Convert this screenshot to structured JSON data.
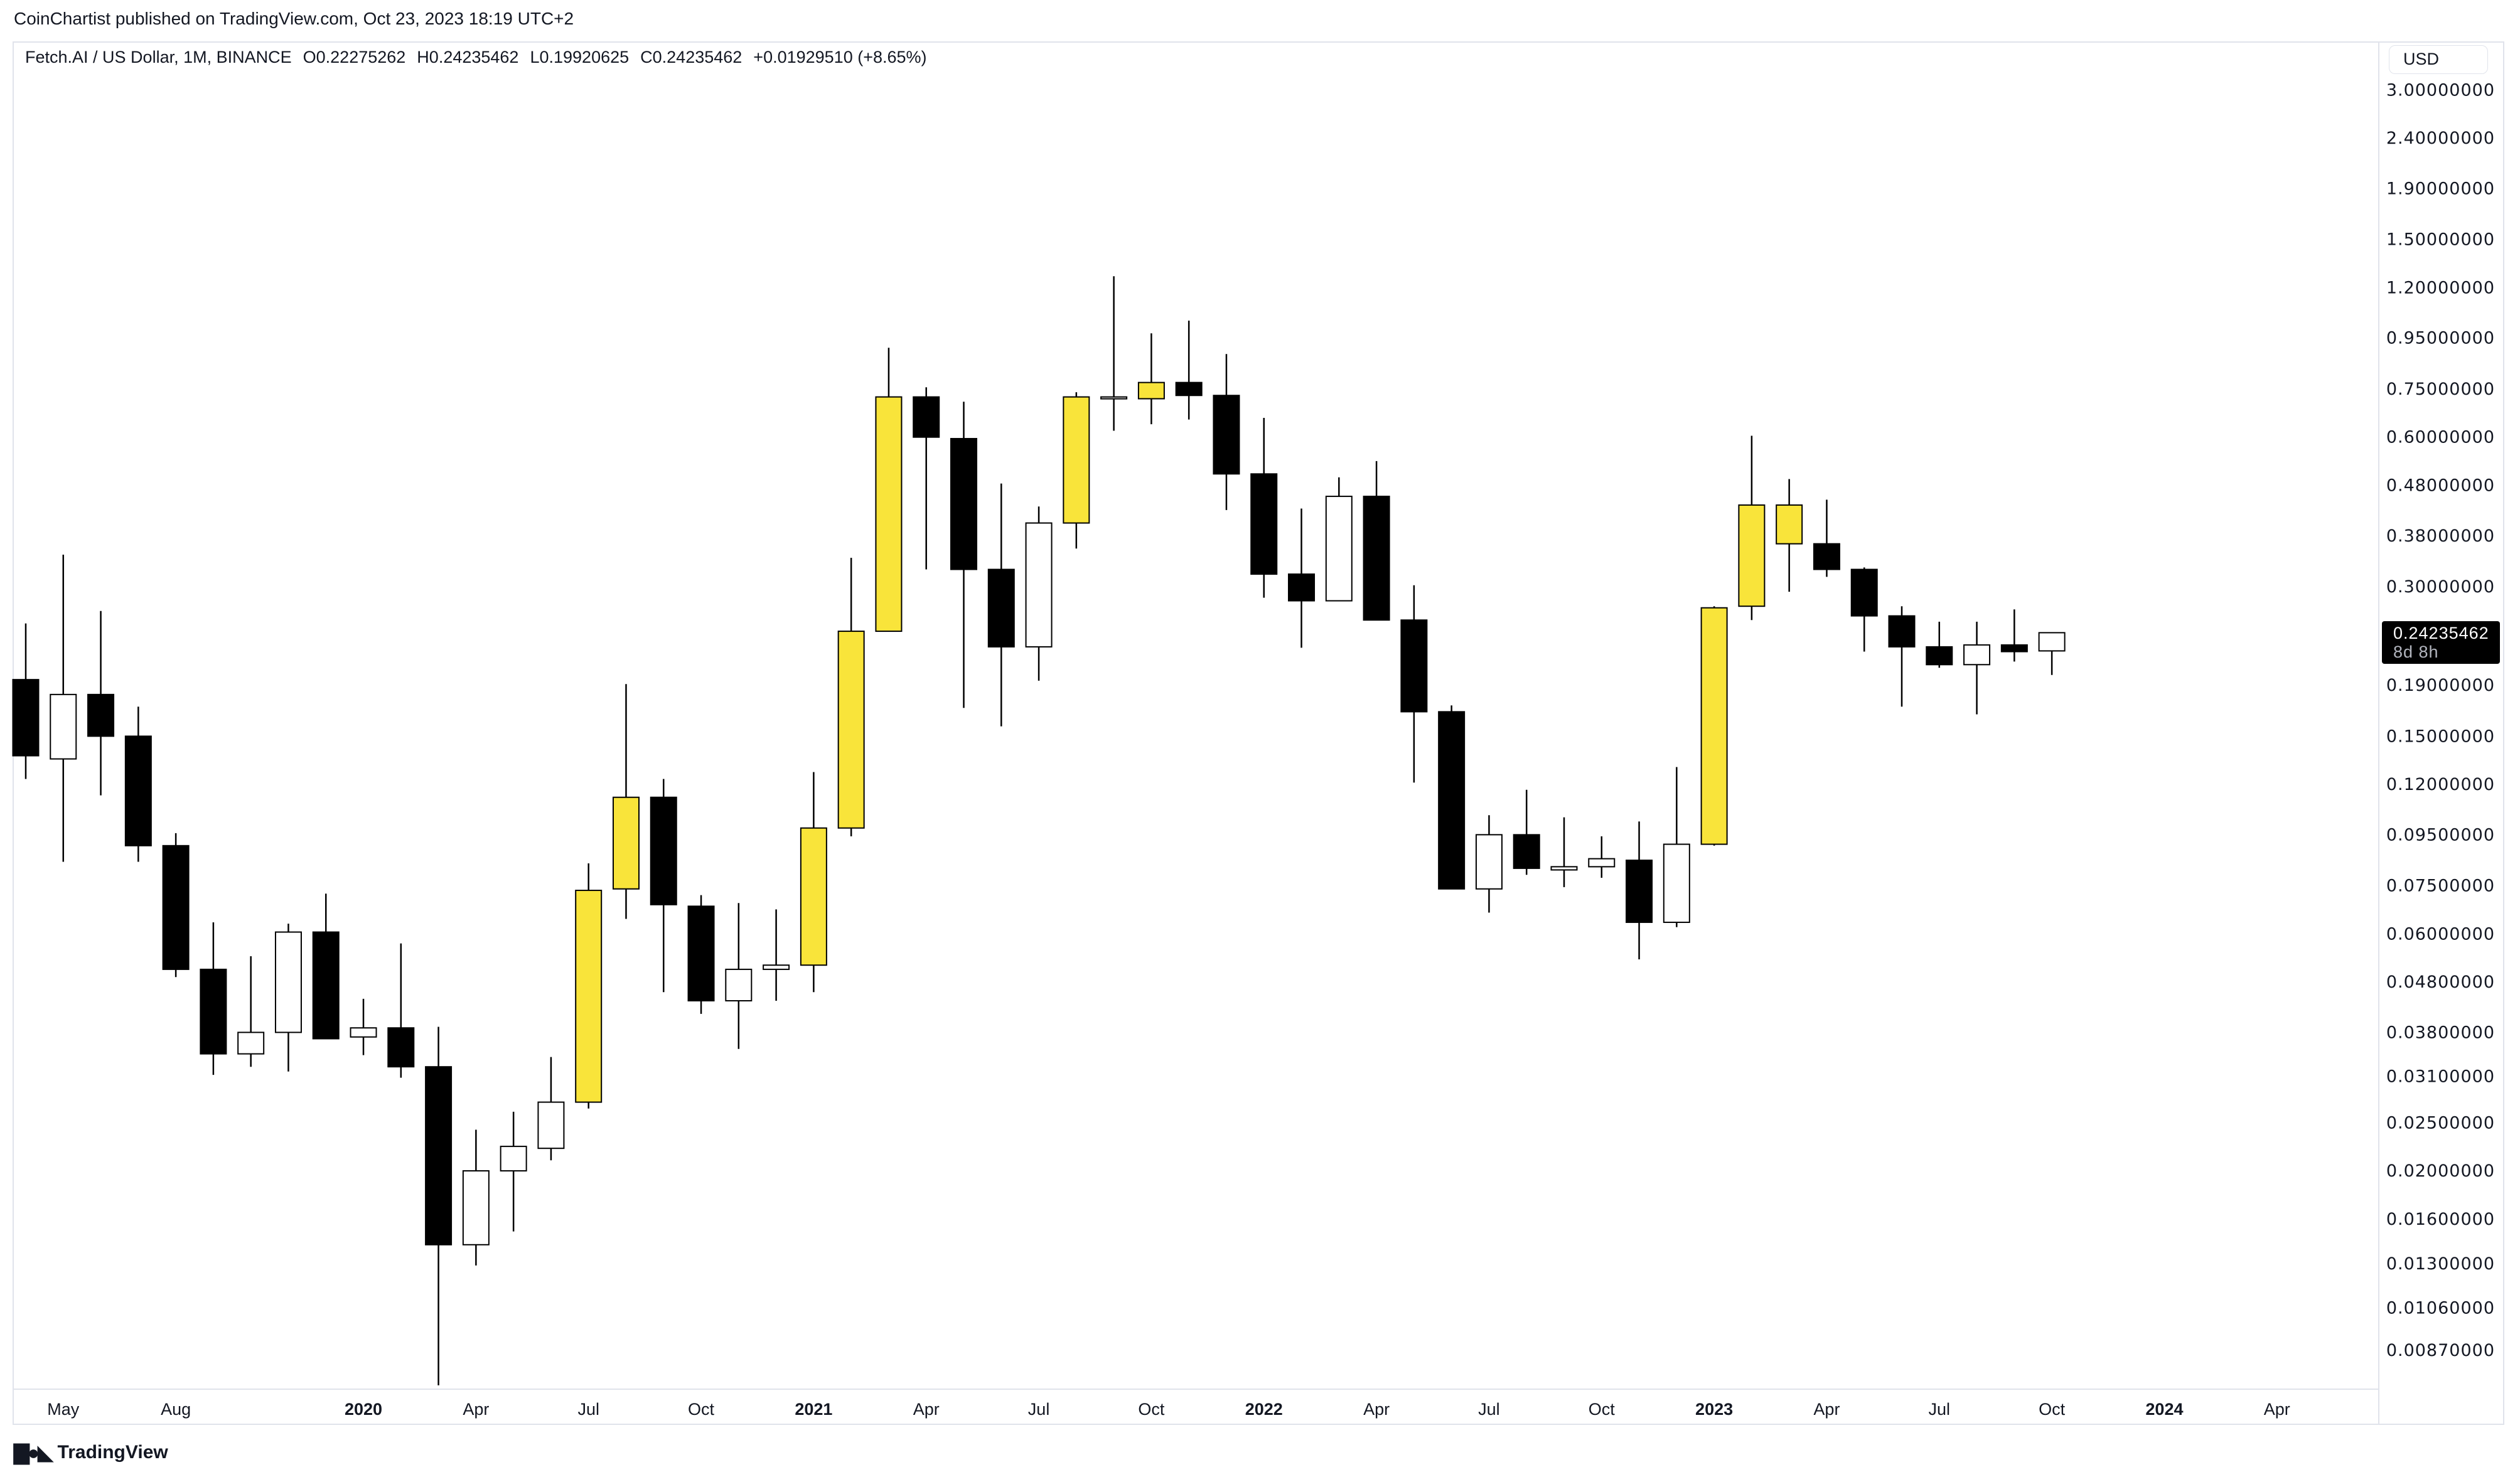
{
  "header": {
    "published": "CoinChartist published on TradingView.com, Oct 23, 2023 18:19 UTC+2"
  },
  "legend": {
    "symbol": "Fetch.AI / US Dollar, 1M, BINANCE",
    "o_key": "O",
    "o": "0.22275262",
    "h_key": "H",
    "h": "0.24235462",
    "l_key": "L",
    "l": "0.19920625",
    "c_key": "C",
    "c": "0.24235462",
    "change": "+0.01929510 (+8.65%)"
  },
  "price_axis": {
    "currency": "USD",
    "current_price": "0.24235462",
    "countdown": "8d 8h"
  },
  "footer": {
    "brand": "TradingView"
  },
  "colors": {
    "bear": "#000000",
    "bull": "#ffffff",
    "highlight": "#f9e43a",
    "grid_border": "#e0e3eb",
    "text": "#131722"
  },
  "chart_data": {
    "type": "candlestick",
    "title": "Fetch.AI / US Dollar, 1M, BINANCE",
    "scale": "log",
    "ylabel": "USD",
    "ylim": [
      0.0074,
      3.0
    ],
    "grid": false,
    "yticks": [
      {
        "v": 3.0,
        "label": "3.00000000"
      },
      {
        "v": 2.4,
        "label": "2.40000000"
      },
      {
        "v": 1.9,
        "label": "1.90000000"
      },
      {
        "v": 1.5,
        "label": "1.50000000"
      },
      {
        "v": 1.2,
        "label": "1.20000000"
      },
      {
        "v": 0.95,
        "label": "0.95000000"
      },
      {
        "v": 0.75,
        "label": "0.75000000"
      },
      {
        "v": 0.6,
        "label": "0.60000000"
      },
      {
        "v": 0.48,
        "label": "0.48000000"
      },
      {
        "v": 0.38,
        "label": "0.38000000"
      },
      {
        "v": 0.3,
        "label": "0.30000000"
      },
      {
        "v": 0.19,
        "label": "0.19000000"
      },
      {
        "v": 0.15,
        "label": "0.15000000"
      },
      {
        "v": 0.12,
        "label": "0.12000000"
      },
      {
        "v": 0.095,
        "label": "0.09500000"
      },
      {
        "v": 0.075,
        "label": "0.07500000"
      },
      {
        "v": 0.06,
        "label": "0.06000000"
      },
      {
        "v": 0.048,
        "label": "0.04800000"
      },
      {
        "v": 0.038,
        "label": "0.03800000"
      },
      {
        "v": 0.031,
        "label": "0.03100000"
      },
      {
        "v": 0.025,
        "label": "0.02500000"
      },
      {
        "v": 0.02,
        "label": "0.02000000"
      },
      {
        "v": 0.016,
        "label": "0.01600000"
      },
      {
        "v": 0.013,
        "label": "0.01300000"
      },
      {
        "v": 0.0106,
        "label": "0.01060000"
      },
      {
        "v": 0.0087,
        "label": "0.00870000"
      }
    ],
    "xticks": [
      {
        "t": "2019-05",
        "label": "May",
        "bold": false
      },
      {
        "t": "2019-08",
        "label": "Aug",
        "bold": false
      },
      {
        "t": "2020-01",
        "label": "2020",
        "bold": true
      },
      {
        "t": "2020-04",
        "label": "Apr",
        "bold": false
      },
      {
        "t": "2020-07",
        "label": "Jul",
        "bold": false
      },
      {
        "t": "2020-10",
        "label": "Oct",
        "bold": false
      },
      {
        "t": "2021-01",
        "label": "2021",
        "bold": true
      },
      {
        "t": "2021-04",
        "label": "Apr",
        "bold": false
      },
      {
        "t": "2021-07",
        "label": "Jul",
        "bold": false
      },
      {
        "t": "2021-10",
        "label": "Oct",
        "bold": false
      },
      {
        "t": "2022-01",
        "label": "2022",
        "bold": true
      },
      {
        "t": "2022-04",
        "label": "Apr",
        "bold": false
      },
      {
        "t": "2022-07",
        "label": "Jul",
        "bold": false
      },
      {
        "t": "2022-10",
        "label": "Oct",
        "bold": false
      },
      {
        "t": "2023-01",
        "label": "2023",
        "bold": true
      },
      {
        "t": "2023-04",
        "label": "Apr",
        "bold": false
      },
      {
        "t": "2023-07",
        "label": "Jul",
        "bold": false
      },
      {
        "t": "2023-10",
        "label": "Oct",
        "bold": false
      },
      {
        "t": "2024-01",
        "label": "2024",
        "bold": true
      },
      {
        "t": "2024-04",
        "label": "Apr",
        "bold": false
      }
    ],
    "candles": [
      {
        "t": "2019-04",
        "o": 0.195,
        "h": 0.253,
        "l": 0.123,
        "c": 0.137,
        "color": "black"
      },
      {
        "t": "2019-05",
        "o": 0.135,
        "h": 0.348,
        "l": 0.0838,
        "c": 0.182,
        "color": "white"
      },
      {
        "t": "2019-06",
        "o": 0.182,
        "h": 0.268,
        "l": 0.114,
        "c": 0.15,
        "color": "black"
      },
      {
        "t": "2019-07",
        "o": 0.15,
        "h": 0.172,
        "l": 0.0838,
        "c": 0.0903,
        "color": "black"
      },
      {
        "t": "2019-08",
        "o": 0.0903,
        "h": 0.0957,
        "l": 0.0491,
        "c": 0.0509,
        "color": "black"
      },
      {
        "t": "2019-09",
        "o": 0.0509,
        "h": 0.0633,
        "l": 0.0312,
        "c": 0.0344,
        "color": "black"
      },
      {
        "t": "2019-10",
        "o": 0.0344,
        "h": 0.0541,
        "l": 0.0324,
        "c": 0.038,
        "color": "white"
      },
      {
        "t": "2019-11",
        "o": 0.038,
        "h": 0.0629,
        "l": 0.0317,
        "c": 0.0605,
        "color": "white"
      },
      {
        "t": "2019-12",
        "o": 0.0605,
        "h": 0.0723,
        "l": 0.0369,
        "c": 0.0369,
        "color": "black"
      },
      {
        "t": "2020-01",
        "o": 0.0372,
        "h": 0.0444,
        "l": 0.0342,
        "c": 0.0388,
        "color": "white"
      },
      {
        "t": "2020-02",
        "o": 0.0388,
        "h": 0.0574,
        "l": 0.0308,
        "c": 0.0324,
        "color": "black"
      },
      {
        "t": "2020-03",
        "o": 0.0324,
        "h": 0.039,
        "l": 0.0074,
        "c": 0.0142,
        "color": "black"
      },
      {
        "t": "2020-04",
        "o": 0.0142,
        "h": 0.0242,
        "l": 0.0129,
        "c": 0.02,
        "color": "white"
      },
      {
        "t": "2020-05",
        "o": 0.02,
        "h": 0.0263,
        "l": 0.0151,
        "c": 0.0224,
        "color": "white"
      },
      {
        "t": "2020-06",
        "o": 0.0222,
        "h": 0.0339,
        "l": 0.021,
        "c": 0.0275,
        "color": "white"
      },
      {
        "t": "2020-07",
        "o": 0.0275,
        "h": 0.0832,
        "l": 0.0267,
        "c": 0.0734,
        "color": "yellow"
      },
      {
        "t": "2020-08",
        "o": 0.0739,
        "h": 0.191,
        "l": 0.0643,
        "c": 0.113,
        "color": "yellow"
      },
      {
        "t": "2020-09",
        "o": 0.113,
        "h": 0.123,
        "l": 0.0458,
        "c": 0.0687,
        "color": "black"
      },
      {
        "t": "2020-10",
        "o": 0.0682,
        "h": 0.0718,
        "l": 0.0414,
        "c": 0.044,
        "color": "black"
      },
      {
        "t": "2020-11",
        "o": 0.044,
        "h": 0.0692,
        "l": 0.0352,
        "c": 0.0509,
        "color": "white"
      },
      {
        "t": "2020-12",
        "o": 0.0509,
        "h": 0.0672,
        "l": 0.044,
        "c": 0.0519,
        "color": "white"
      },
      {
        "t": "2021-01",
        "o": 0.0519,
        "h": 0.127,
        "l": 0.0458,
        "c": 0.098,
        "color": "yellow"
      },
      {
        "t": "2021-02",
        "o": 0.098,
        "h": 0.343,
        "l": 0.0943,
        "c": 0.244,
        "color": "yellow"
      },
      {
        "t": "2021-03",
        "o": 0.244,
        "h": 0.908,
        "l": 0.244,
        "c": 0.723,
        "color": "yellow"
      },
      {
        "t": "2021-04",
        "o": 0.723,
        "h": 0.756,
        "l": 0.325,
        "c": 0.6,
        "color": "black"
      },
      {
        "t": "2021-05",
        "o": 0.596,
        "h": 0.707,
        "l": 0.171,
        "c": 0.325,
        "color": "black"
      },
      {
        "t": "2021-06",
        "o": 0.325,
        "h": 0.484,
        "l": 0.157,
        "c": 0.227,
        "color": "black"
      },
      {
        "t": "2021-07",
        "o": 0.227,
        "h": 0.435,
        "l": 0.194,
        "c": 0.403,
        "color": "white"
      },
      {
        "t": "2021-08",
        "o": 0.403,
        "h": 0.739,
        "l": 0.358,
        "c": 0.723,
        "color": "yellow"
      },
      {
        "t": "2021-09",
        "o": 0.717,
        "h": 1.265,
        "l": 0.618,
        "c": 0.723,
        "color": "white"
      },
      {
        "t": "2021-10",
        "o": 0.717,
        "h": 0.971,
        "l": 0.637,
        "c": 0.773,
        "color": "yellow"
      },
      {
        "t": "2021-11",
        "o": 0.773,
        "h": 1.03,
        "l": 0.651,
        "c": 0.728,
        "color": "black"
      },
      {
        "t": "2021-12",
        "o": 0.728,
        "h": 0.882,
        "l": 0.428,
        "c": 0.506,
        "color": "black"
      },
      {
        "t": "2022-01",
        "o": 0.506,
        "h": 0.656,
        "l": 0.285,
        "c": 0.318,
        "color": "black"
      },
      {
        "t": "2022-02",
        "o": 0.318,
        "h": 0.431,
        "l": 0.226,
        "c": 0.281,
        "color": "black"
      },
      {
        "t": "2022-03",
        "o": 0.281,
        "h": 0.498,
        "l": 0.281,
        "c": 0.456,
        "color": "white"
      },
      {
        "t": "2022-04",
        "o": 0.456,
        "h": 0.537,
        "l": 0.257,
        "c": 0.257,
        "color": "black"
      },
      {
        "t": "2022-05",
        "o": 0.257,
        "h": 0.302,
        "l": 0.121,
        "c": 0.168,
        "color": "black"
      },
      {
        "t": "2022-06",
        "o": 0.168,
        "h": 0.173,
        "l": 0.0739,
        "c": 0.0739,
        "color": "black"
      },
      {
        "t": "2022-07",
        "o": 0.0739,
        "h": 0.104,
        "l": 0.0662,
        "c": 0.095,
        "color": "white"
      },
      {
        "t": "2022-08",
        "o": 0.095,
        "h": 0.117,
        "l": 0.0789,
        "c": 0.0813,
        "color": "black"
      },
      {
        "t": "2022-09",
        "o": 0.0807,
        "h": 0.103,
        "l": 0.0745,
        "c": 0.0819,
        "color": "white"
      },
      {
        "t": "2022-10",
        "o": 0.0819,
        "h": 0.0943,
        "l": 0.0778,
        "c": 0.085,
        "color": "white"
      },
      {
        "t": "2022-11",
        "o": 0.0844,
        "h": 0.101,
        "l": 0.0533,
        "c": 0.0633,
        "color": "black"
      },
      {
        "t": "2022-12",
        "o": 0.0633,
        "h": 0.13,
        "l": 0.0619,
        "c": 0.0909,
        "color": "white"
      },
      {
        "t": "2023-01",
        "o": 0.0909,
        "h": 0.274,
        "l": 0.0903,
        "c": 0.272,
        "color": "yellow"
      },
      {
        "t": "2023-02",
        "o": 0.274,
        "h": 0.604,
        "l": 0.257,
        "c": 0.438,
        "color": "yellow"
      },
      {
        "t": "2023-03",
        "o": 0.366,
        "h": 0.494,
        "l": 0.293,
        "c": 0.438,
        "color": "yellow"
      },
      {
        "t": "2023-04",
        "o": 0.366,
        "h": 0.449,
        "l": 0.314,
        "c": 0.325,
        "color": "black"
      },
      {
        "t": "2023-05",
        "o": 0.325,
        "h": 0.328,
        "l": 0.222,
        "c": 0.262,
        "color": "black"
      },
      {
        "t": "2023-06",
        "o": 0.262,
        "h": 0.274,
        "l": 0.172,
        "c": 0.227,
        "color": "black"
      },
      {
        "t": "2023-07",
        "o": 0.227,
        "h": 0.255,
        "l": 0.206,
        "c": 0.209,
        "color": "black"
      },
      {
        "t": "2023-08",
        "o": 0.209,
        "h": 0.255,
        "l": 0.166,
        "c": 0.229,
        "color": "white"
      },
      {
        "t": "2023-09",
        "o": 0.229,
        "h": 0.27,
        "l": 0.212,
        "c": 0.222,
        "color": "black"
      },
      {
        "t": "2023-10",
        "o": 0.22275262,
        "h": 0.24235462,
        "l": 0.19920625,
        "c": 0.24235462,
        "color": "white"
      }
    ]
  }
}
